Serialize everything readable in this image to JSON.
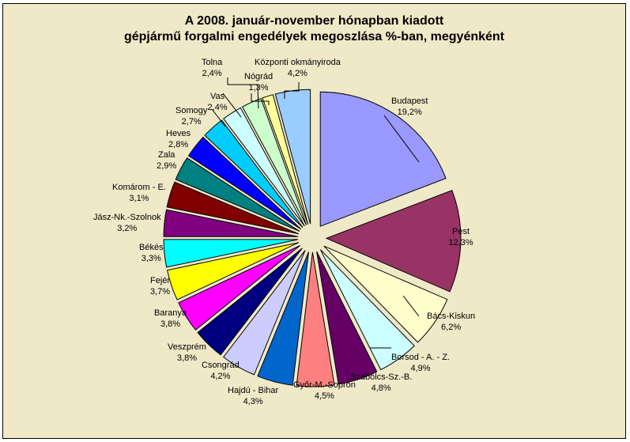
{
  "chart_data": {
    "type": "pie",
    "title_line1": "A  2008. január-november hónapban kiadott",
    "title_line2": "gépjármű forgalmi engedélyek megoszlása %-ban, megyénként",
    "slices": [
      {
        "name": "Budapest",
        "value": 19.2,
        "label": "19,2%",
        "color": "#9999ff"
      },
      {
        "name": "Pest",
        "value": 12.3,
        "label": "12,3%",
        "color": "#993366"
      },
      {
        "name": "Bács-Kiskun",
        "value": 6.2,
        "label": "6,2%",
        "color": "#ffffcc"
      },
      {
        "name": "Borsod - A. - Z.",
        "value": 4.9,
        "label": "4,9%",
        "color": "#ccffff"
      },
      {
        "name": "Szabolcs-Sz.-B.",
        "value": 4.8,
        "label": "4,8%",
        "color": "#660066"
      },
      {
        "name": "Győr-M.-Sopron",
        "value": 4.5,
        "label": "4,5%",
        "color": "#ff8080"
      },
      {
        "name": "Hajdú - Bihar",
        "value": 4.3,
        "label": "4,3%",
        "color": "#0066cc"
      },
      {
        "name": "Csongrád",
        "value": 4.2,
        "label": "4,2%",
        "color": "#ccccff"
      },
      {
        "name": "Veszprém",
        "value": 3.8,
        "label": "3,8%",
        "color": "#000080"
      },
      {
        "name": "Baranya",
        "value": 3.8,
        "label": "3,8%",
        "color": "#ff00ff"
      },
      {
        "name": "Fejér",
        "value": 3.7,
        "label": "3,7%",
        "color": "#ffff00"
      },
      {
        "name": "Békés",
        "value": 3.3,
        "label": "3,3%",
        "color": "#00ffff"
      },
      {
        "name": "Jász-Nk.-Szolnok",
        "value": 3.2,
        "label": "3,2%",
        "color": "#800080"
      },
      {
        "name": "Komárom - E.",
        "value": 3.1,
        "label": "3,1%",
        "color": "#800000"
      },
      {
        "name": "Zala",
        "value": 2.9,
        "label": "2,9%",
        "color": "#008080"
      },
      {
        "name": "Heves",
        "value": 2.8,
        "label": "2,8%",
        "color": "#0000ff"
      },
      {
        "name": "Somogy",
        "value": 2.7,
        "label": "2,7%",
        "color": "#00ccff"
      },
      {
        "name": "Vas",
        "value": 2.4,
        "label": "2,4%",
        "color": "#ccffff"
      },
      {
        "name": "Tolna",
        "value": 2.4,
        "label": "2,4%",
        "color": "#ccffcc"
      },
      {
        "name": "Nógrád",
        "value": 1.3,
        "label": "1,3%",
        "color": "#ffff99"
      },
      {
        "name": "Központi okmányiroda",
        "value": 4.2,
        "label": "4,2%",
        "color": "#99ccff"
      }
    ]
  }
}
